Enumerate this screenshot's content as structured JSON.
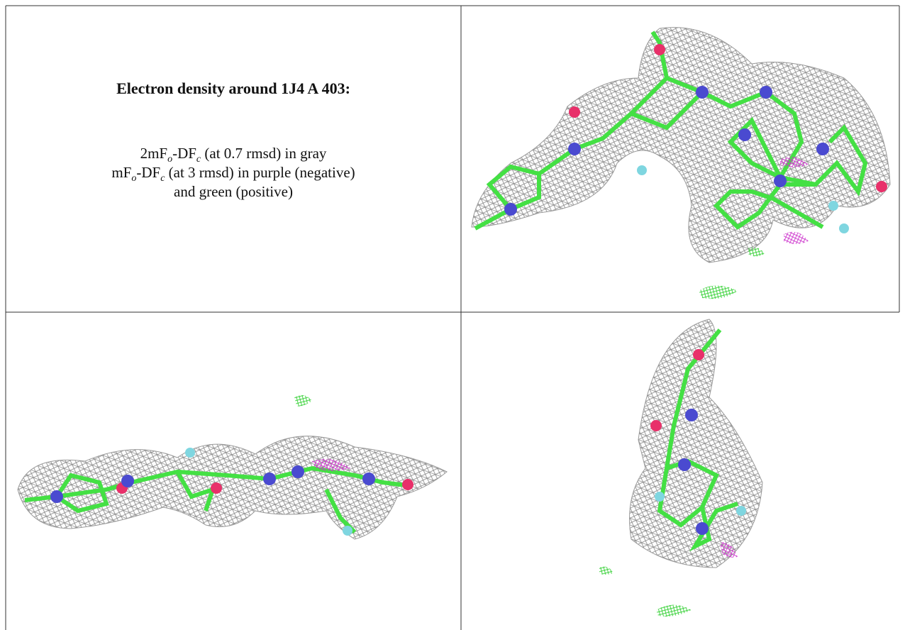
{
  "title": "Electron density around 1J4 A 403:",
  "legend": [
    {
      "parts": [
        "2mF",
        "o",
        "-DF",
        "c",
        " (at 0.7 rmsd) in gray"
      ]
    },
    {
      "parts": [
        "mF",
        "o",
        "-DF",
        "c",
        " (at 3 rmsd) in purple (negative)"
      ]
    },
    {
      "parts": [
        "and green (positive)"
      ]
    }
  ]
}
